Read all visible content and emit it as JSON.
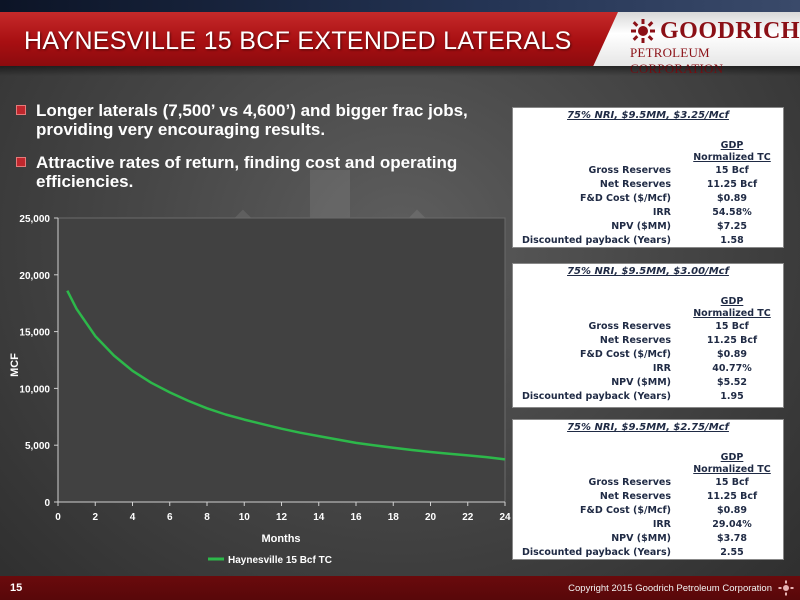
{
  "slide": {
    "title": "HAYNESVILLE 15 BCF EXTENDED LATERALS",
    "page_number": "15",
    "copyright": "Copyright 2015 Goodrich Petroleum Corporation"
  },
  "logo": {
    "line1": "GOODRICH",
    "line2": "PETROLEUM CORPORATION",
    "color": "#8b1016"
  },
  "colors": {
    "accent_red": "#a80f12",
    "curve_green": "#2db84a",
    "plot_background": "#414141"
  },
  "bullets": [
    "Longer laterals (7,500’ vs 4,600’) and bigger frac jobs, providing very encouraging results.",
    "Attractive rates of return, finding cost and operating efficiencies."
  ],
  "chart_data": {
    "type": "line",
    "xlabel": "Months",
    "ylabel": "MCF",
    "xlim": [
      0,
      24
    ],
    "ylim": [
      0,
      25000
    ],
    "x_ticks": [
      "0",
      "2",
      "4",
      "6",
      "8",
      "10",
      "12",
      "14",
      "16",
      "18",
      "20",
      "22",
      "24"
    ],
    "y_ticks": [
      "0",
      "5,000",
      "10,000",
      "15,000",
      "20,000",
      "25,000"
    ],
    "grid": false,
    "legend": "bottom-left",
    "series": [
      {
        "name": "Haynesville 15 Bcf TC",
        "color": "#2db84a",
        "x": [
          0.5,
          1,
          2,
          3,
          4,
          5,
          6,
          7,
          8,
          9,
          10,
          11,
          12,
          13,
          14,
          15,
          16,
          17,
          18,
          19,
          20,
          21,
          22,
          23,
          24
        ],
        "y": [
          18600,
          17000,
          14600,
          12900,
          11550,
          10500,
          9650,
          8900,
          8250,
          7700,
          7250,
          6850,
          6450,
          6100,
          5800,
          5500,
          5200,
          4980,
          4780,
          4580,
          4400,
          4250,
          4100,
          3950,
          3750
        ]
      }
    ]
  },
  "tables": [
    {
      "title": "75% NRI, $9.5MM, $3.25/Mcf",
      "header_line1": "GDP",
      "header_line2": "Normalized TC",
      "rows": [
        {
          "label": "Gross Reserves",
          "value": "15 Bcf"
        },
        {
          "label": "Net Reserves",
          "value": "11.25 Bcf"
        },
        {
          "label": "F&D Cost ($/Mcf)",
          "value": "$0.89"
        },
        {
          "label": "IRR",
          "value": "54.58%"
        },
        {
          "label": "NPV ($MM)",
          "value": "$7.25"
        },
        {
          "label": "Discounted payback (Years)",
          "value": "1.58"
        }
      ]
    },
    {
      "title": "75% NRI, $9.5MM, $3.00/Mcf",
      "header_line1": "GDP",
      "header_line2": "Normalized TC",
      "rows": [
        {
          "label": "Gross Reserves",
          "value": "15 Bcf"
        },
        {
          "label": "Net Reserves",
          "value": "11.25 Bcf"
        },
        {
          "label": "F&D Cost ($/Mcf)",
          "value": "$0.89"
        },
        {
          "label": "IRR",
          "value": "40.77%"
        },
        {
          "label": "NPV ($MM)",
          "value": "$5.52"
        },
        {
          "label": "Discounted payback (Years)",
          "value": "1.95"
        }
      ]
    },
    {
      "title": "75% NRI, $9.5MM, $2.75/Mcf",
      "header_line1": "GDP",
      "header_line2": "Normalized TC",
      "rows": [
        {
          "label": "Gross Reserves",
          "value": "15 Bcf"
        },
        {
          "label": "Net Reserves",
          "value": "11.25 Bcf"
        },
        {
          "label": "F&D Cost ($/Mcf)",
          "value": "$0.89"
        },
        {
          "label": "IRR",
          "value": "29.04%"
        },
        {
          "label": "NPV ($MM)",
          "value": "$3.78"
        },
        {
          "label": "Discounted payback (Years)",
          "value": "2.55"
        }
      ]
    }
  ]
}
